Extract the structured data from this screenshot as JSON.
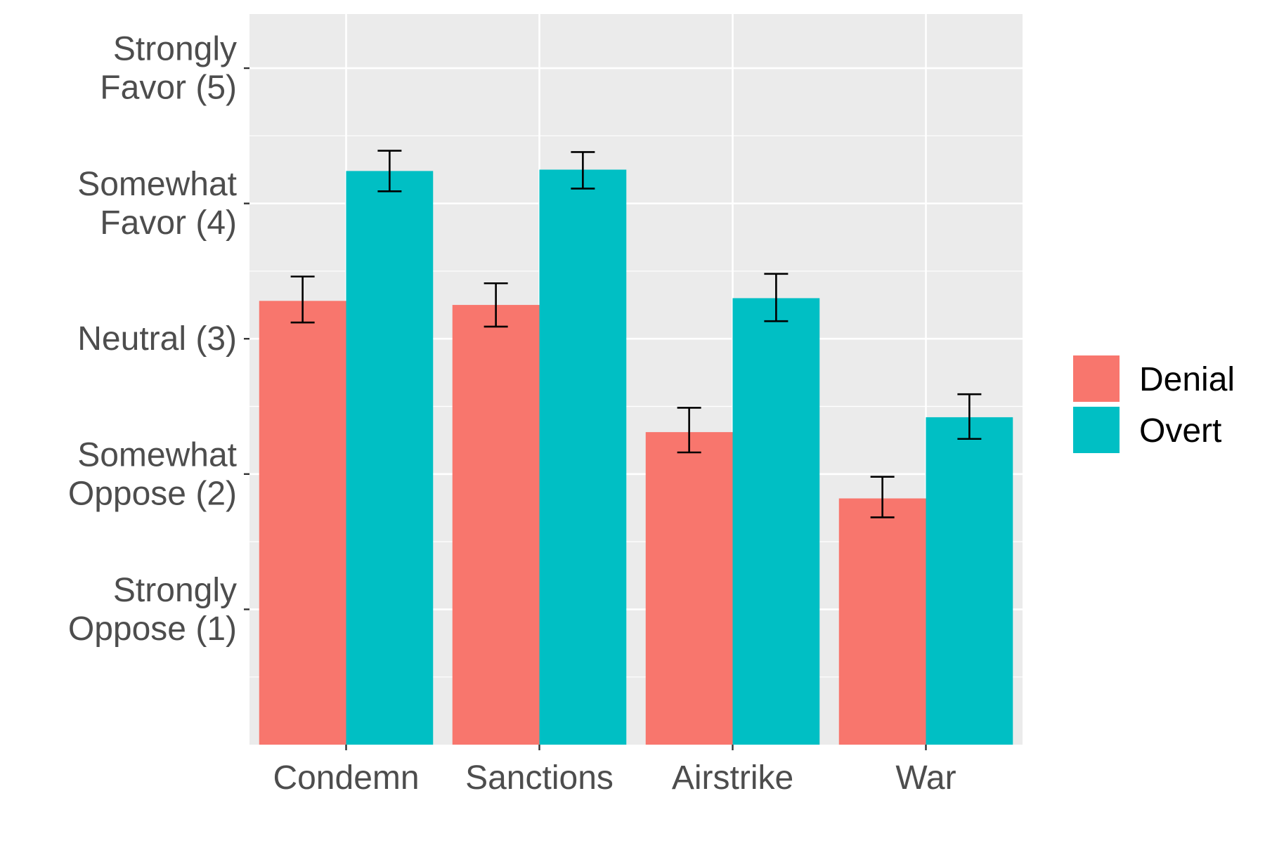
{
  "chart_data": {
    "type": "bar",
    "title": "",
    "xlabel": "",
    "ylabel": "",
    "categories": [
      "Condemn",
      "Sanctions",
      "Airstrike",
      "War"
    ],
    "series": [
      {
        "name": "Denial",
        "color": "#F8766D",
        "values": [
          3.28,
          3.25,
          2.31,
          1.82
        ],
        "err_low": [
          3.12,
          3.09,
          2.16,
          1.68
        ],
        "err_high": [
          3.46,
          3.41,
          2.49,
          1.98
        ]
      },
      {
        "name": "Overt",
        "color": "#00BFC4",
        "values": [
          4.24,
          4.25,
          3.3,
          2.42
        ],
        "err_low": [
          4.09,
          4.11,
          3.13,
          2.26
        ],
        "err_high": [
          4.39,
          4.38,
          3.48,
          2.59
        ]
      }
    ],
    "ylim": [
      0,
      5.4
    ],
    "yticks": [
      {
        "value": 1,
        "lines": [
          "Strongly",
          "Oppose (1)"
        ]
      },
      {
        "value": 2,
        "lines": [
          "Somewhat",
          "Oppose (2)"
        ]
      },
      {
        "value": 3,
        "lines": [
          "Neutral (3)"
        ]
      },
      {
        "value": 4,
        "lines": [
          "Somewhat",
          "Favor (4)"
        ]
      },
      {
        "value": 5,
        "lines": [
          "Strongly",
          "Favor (5)"
        ]
      }
    ],
    "grid": true,
    "panel_background": "#EBEBEB",
    "legend": {
      "position": "right",
      "entries": [
        "Denial",
        "Overt"
      ]
    }
  }
}
